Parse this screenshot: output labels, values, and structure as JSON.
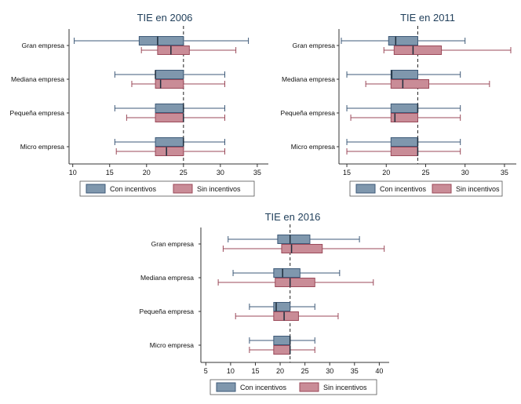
{
  "colors": {
    "con": "#7f97ad",
    "con_stroke": "#3e5a78",
    "sin": "#c98c97",
    "sin_stroke": "#9b4a5a",
    "axis": "#333333",
    "text": "#111111",
    "title": "#1f3e5a",
    "ref_line": "#333333"
  },
  "chart_data": [
    {
      "type": "boxplot",
      "title": "TIE en 2006",
      "orientation": "horizontal",
      "categories": [
        "Gran empresa",
        "Mediana empresa",
        "Pequeña empresa",
        "Micro empresa"
      ],
      "x_ticks": [
        10,
        15,
        20,
        25,
        30,
        35
      ],
      "xlim": [
        9.5,
        36.5
      ],
      "reference_line": 25,
      "legend": [
        "Con incentivos",
        "Sin incentivos"
      ],
      "series": [
        {
          "name": "Con incentivos",
          "boxes": [
            {
              "category": "Gran empresa",
              "min": 10.2,
              "q1": 19,
              "median": 21.5,
              "q3": 25,
              "max": 33.8
            },
            {
              "category": "Mediana empresa",
              "min": 15.7,
              "q1": 21.2,
              "median": 21.2,
              "q3": 25,
              "max": 30.6
            },
            {
              "category": "Pequeña empresa",
              "min": 15.7,
              "q1": 21.2,
              "median": 25,
              "q3": 25,
              "max": 30.6
            },
            {
              "category": "Micro empresa",
              "min": 15.7,
              "q1": 21.2,
              "median": 25,
              "q3": 25,
              "max": 30.6
            }
          ]
        },
        {
          "name": "Sin incentivos",
          "boxes": [
            {
              "category": "Gran empresa",
              "min": 19.3,
              "q1": 21.5,
              "median": 23.3,
              "q3": 25.8,
              "max": 32.1
            },
            {
              "category": "Mediana empresa",
              "min": 18,
              "q1": 21.2,
              "median": 21.9,
              "q3": 25,
              "max": 30.6
            },
            {
              "category": "Pequeña empresa",
              "min": 17.3,
              "q1": 21.2,
              "median": 25,
              "q3": 25,
              "max": 30.6
            },
            {
              "category": "Micro empresa",
              "min": 15.9,
              "q1": 21.2,
              "median": 22.7,
              "q3": 25,
              "max": 30.6
            }
          ]
        }
      ]
    },
    {
      "type": "boxplot",
      "title": "TIE en 2011",
      "orientation": "horizontal",
      "categories": [
        "Gran empresa",
        "Mediana empresa",
        "Pequeña empresa",
        "Micro empresa"
      ],
      "x_ticks": [
        15,
        20,
        25,
        30,
        35
      ],
      "xlim": [
        14,
        36.5
      ],
      "reference_line": 24,
      "legend": [
        "Con incentivos",
        "Sin incentivos"
      ],
      "series": [
        {
          "name": "Con incentivos",
          "boxes": [
            {
              "category": "Gran empresa",
              "min": 14.3,
              "q1": 20.3,
              "median": 21.2,
              "q3": 24,
              "max": 30
            },
            {
              "category": "Mediana empresa",
              "min": 15,
              "q1": 20.6,
              "median": 20.7,
              "q3": 24,
              "max": 29.4
            },
            {
              "category": "Pequeña empresa",
              "min": 15,
              "q1": 20.6,
              "median": 24,
              "q3": 24,
              "max": 29.4
            },
            {
              "category": "Micro empresa",
              "min": 15,
              "q1": 20.6,
              "median": 24,
              "q3": 24,
              "max": 29.4
            }
          ]
        },
        {
          "name": "Sin incentivos",
          "boxes": [
            {
              "category": "Gran empresa",
              "min": 19.7,
              "q1": 21,
              "median": 23.4,
              "q3": 27,
              "max": 35.8
            },
            {
              "category": "Mediana empresa",
              "min": 17.4,
              "q1": 20.6,
              "median": 22.1,
              "q3": 25.4,
              "max": 33.1
            },
            {
              "category": "Pequeña empresa",
              "min": 15.5,
              "q1": 20.6,
              "median": 21.1,
              "q3": 24,
              "max": 29.4
            },
            {
              "category": "Micro empresa",
              "min": 15,
              "q1": 20.6,
              "median": 24,
              "q3": 24,
              "max": 29.4
            }
          ]
        }
      ]
    },
    {
      "type": "boxplot",
      "title": "TIE en 2016",
      "orientation": "horizontal",
      "categories": [
        "Gran empresa",
        "Mediana empresa",
        "Pequeña empresa",
        "Micro empresa"
      ],
      "x_ticks": [
        5,
        10,
        15,
        20,
        25,
        30,
        35,
        40
      ],
      "xlim": [
        4,
        42
      ],
      "reference_line": 22,
      "legend": [
        "Con incentivos",
        "Sin incentivos"
      ],
      "series": [
        {
          "name": "Con incentivos",
          "boxes": [
            {
              "category": "Gran empresa",
              "min": 9.5,
              "q1": 19.5,
              "median": 22,
              "q3": 26,
              "max": 36
            },
            {
              "category": "Mediana empresa",
              "min": 10.5,
              "q1": 18.7,
              "median": 20.5,
              "q3": 24,
              "max": 32
            },
            {
              "category": "Pequeña empresa",
              "min": 13.8,
              "q1": 18.7,
              "median": 19.2,
              "q3": 22,
              "max": 27
            },
            {
              "category": "Micro empresa",
              "min": 13.8,
              "q1": 18.7,
              "median": 22,
              "q3": 22,
              "max": 27
            }
          ]
        },
        {
          "name": "Sin incentivos",
          "boxes": [
            {
              "category": "Gran empresa",
              "min": 8.5,
              "q1": 20.3,
              "median": 22.3,
              "q3": 28.5,
              "max": 41
            },
            {
              "category": "Mediana empresa",
              "min": 7.5,
              "q1": 19,
              "median": 22,
              "q3": 27,
              "max": 38.8
            },
            {
              "category": "Pequeña empresa",
              "min": 11,
              "q1": 18.7,
              "median": 20.8,
              "q3": 23.7,
              "max": 31.7
            },
            {
              "category": "Micro empresa",
              "min": 13.8,
              "q1": 18.7,
              "median": 22,
              "q3": 22,
              "max": 27
            }
          ]
        }
      ]
    }
  ]
}
